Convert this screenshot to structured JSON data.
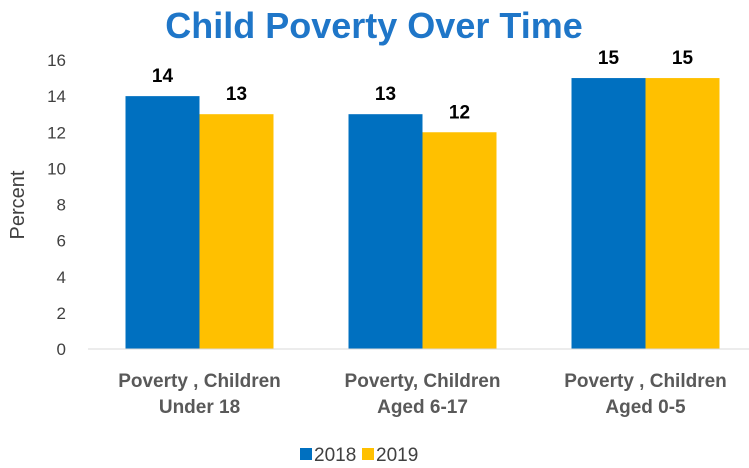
{
  "chart_data": {
    "type": "bar",
    "title": "Child Poverty Over Time",
    "ylabel": "Percent",
    "xlabel": "",
    "ylim": [
      0,
      16
    ],
    "yticks": [
      0,
      2,
      4,
      6,
      8,
      10,
      12,
      14,
      16
    ],
    "grid": false,
    "legend_position": "bottom",
    "categories": [
      [
        "Poverty , Children",
        "Under 18"
      ],
      [
        "Poverty, Children",
        "Aged 6-17"
      ],
      [
        "Poverty , Children",
        "Aged 0-5"
      ]
    ],
    "series": [
      {
        "name": "2018",
        "color": "#0070c0",
        "values": [
          14,
          13,
          15
        ]
      },
      {
        "name": "2019",
        "color": "#ffc000",
        "values": [
          13,
          12,
          15
        ]
      }
    ]
  }
}
